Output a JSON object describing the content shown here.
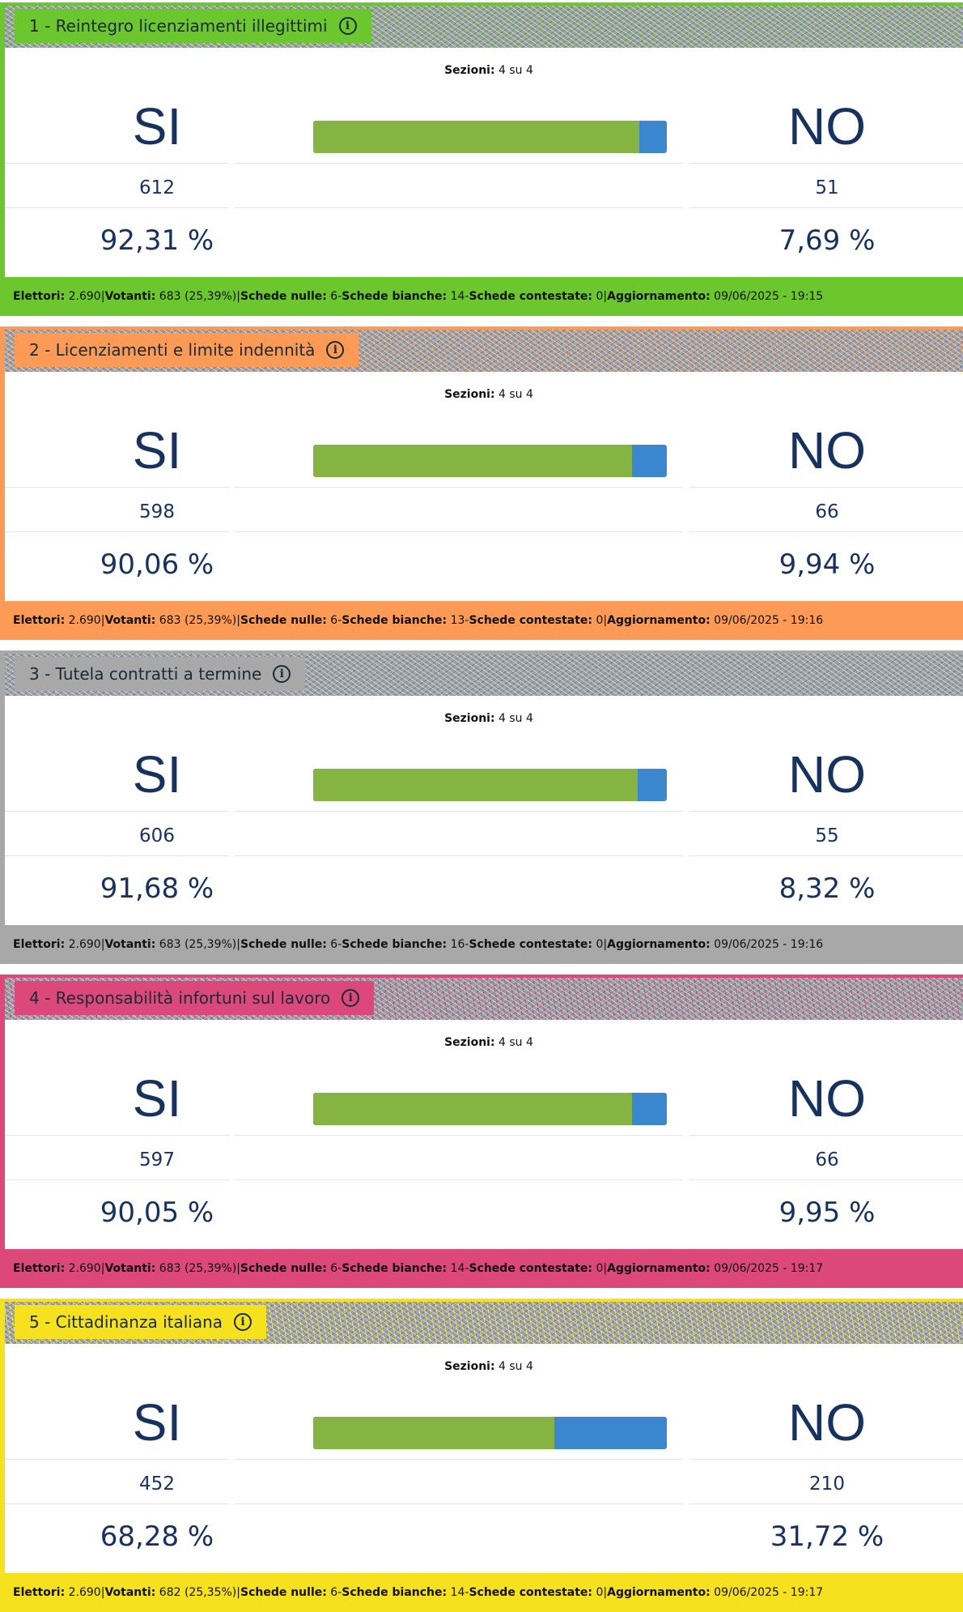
{
  "labels": {
    "sezioni": "Sezioni:",
    "si": "SI",
    "no": "NO",
    "elettori": "Elettori:",
    "votanti": "Votanti:",
    "nulle": "Schede nulle:",
    "bianche": "Schede bianche:",
    "contestate": "Schede contestate:",
    "aggiornamento": "Aggiornamento:",
    "info_icon": "i",
    "sep_bar": " | ",
    "sep_dash": " - "
  },
  "colors": {
    "si_bar": "#86b443",
    "no_bar": "#3a87d0",
    "text": "#17325e"
  },
  "referendums": [
    {
      "title": "1 - Reintegro licenziamenti illegittimi",
      "color": "#6cc72e",
      "sezioni": "4 su 4",
      "si": {
        "count": "612",
        "pct": "92,31 %"
      },
      "no": {
        "count": "51",
        "pct": "7,69 %"
      },
      "si_fraction": 0.9231,
      "elettori": "2.690",
      "votanti": "683 (25,39%)",
      "nulle": "6",
      "bianche": "14",
      "contestate": "0",
      "aggiornamento": "09/06/2025 - 19:15"
    },
    {
      "title": "2 - Licenziamenti e limite indennità",
      "color": "#fd9a56",
      "sezioni": "4 su 4",
      "si": {
        "count": "598",
        "pct": "90,06 %"
      },
      "no": {
        "count": "66",
        "pct": "9,94 %"
      },
      "si_fraction": 0.9006,
      "elettori": "2.690",
      "votanti": "683 (25,39%)",
      "nulle": "6",
      "bianche": "13",
      "contestate": "0",
      "aggiornamento": "09/06/2025 - 19:16"
    },
    {
      "title": "3 - Tutela contratti a termine",
      "color": "#a8a8a8",
      "sezioni": "4 su 4",
      "si": {
        "count": "606",
        "pct": "91,68 %"
      },
      "no": {
        "count": "55",
        "pct": "8,32 %"
      },
      "si_fraction": 0.9168,
      "elettori": "2.690",
      "votanti": "683 (25,39%)",
      "nulle": "6",
      "bianche": "16",
      "contestate": "0",
      "aggiornamento": "09/06/2025 - 19:16"
    },
    {
      "title": "4 - Responsabilità infortuni sul lavoro",
      "color": "#db4879",
      "sezioni": "4 su 4",
      "si": {
        "count": "597",
        "pct": "90,05 %"
      },
      "no": {
        "count": "66",
        "pct": "9,95 %"
      },
      "si_fraction": 0.9005,
      "elettori": "2.690",
      "votanti": "683 (25,39%)",
      "nulle": "6",
      "bianche": "14",
      "contestate": "0",
      "aggiornamento": "09/06/2025 - 19:17"
    },
    {
      "title": "5 - Cittadinanza italiana",
      "color": "#f6e11e",
      "sezioni": "4 su 4",
      "si": {
        "count": "452",
        "pct": "68,28 %"
      },
      "no": {
        "count": "210",
        "pct": "31,72 %"
      },
      "si_fraction": 0.6828,
      "elettori": "2.690",
      "votanti": "682 (25,35%)",
      "nulle": "6",
      "bianche": "14",
      "contestate": "0",
      "aggiornamento": "09/06/2025 - 19:17"
    }
  ]
}
